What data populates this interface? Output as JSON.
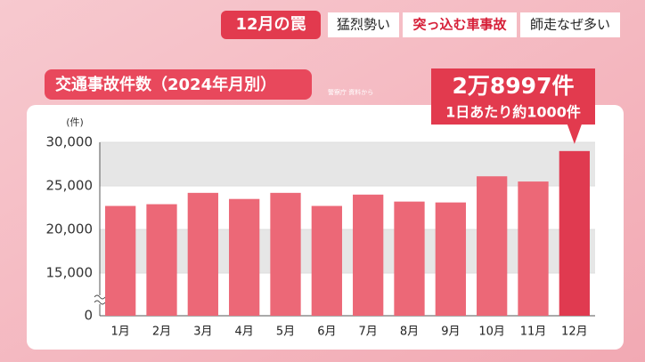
{
  "header": {
    "topic": "12月の罠",
    "tags": [
      "猛烈勢い",
      "突っ込む車事故",
      "師走なぜ多い"
    ]
  },
  "chart_data": {
    "type": "bar",
    "title": "交通事故件数（2024年月別）",
    "source": "警察庁 資料から",
    "y_unit": "(件)",
    "categories": [
      "1月",
      "2月",
      "3月",
      "4月",
      "5月",
      "6月",
      "7月",
      "8月",
      "9月",
      "10月",
      "11月",
      "12月"
    ],
    "values": [
      22700,
      22900,
      24200,
      23500,
      24200,
      22700,
      24000,
      23200,
      23100,
      26100,
      25500,
      28997
    ],
    "value_labels": [
      null,
      null,
      null,
      null,
      null,
      null,
      null,
      null,
      null,
      null,
      null,
      "2万8997件"
    ],
    "annotation": "1日あたり約1000件",
    "colors": [
      "#ec6877",
      "#ec6877",
      "#ec6877",
      "#ec6877",
      "#ec6877",
      "#ec6877",
      "#ec6877",
      "#ec6877",
      "#ec6877",
      "#ec6877",
      "#ec6877",
      "#e03a50"
    ],
    "ylim": [
      0,
      30000
    ],
    "axis_break": true,
    "yticks": [
      0,
      {
        "value": 15000,
        "label": "15,000"
      },
      {
        "value": 20000,
        "label": "20,000"
      },
      {
        "value": 25000,
        "label": "25,000"
      },
      {
        "value": 30000,
        "label": "30,000"
      }
    ],
    "grid": true
  }
}
